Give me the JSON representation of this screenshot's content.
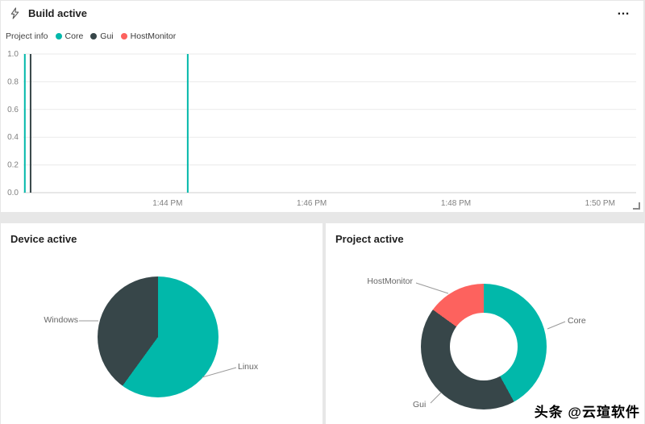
{
  "watermark": "头条 @云瑄软件",
  "colors": {
    "teal": "#01B8AA",
    "dark": "#374649",
    "red": "#FD625E"
  },
  "tiles": {
    "build": {
      "title": "Build active",
      "menu": "…",
      "legend_title": "Project info",
      "legend": [
        {
          "label": "Core",
          "color": "#01B8AA"
        },
        {
          "label": "Gui",
          "color": "#374649"
        },
        {
          "label": "HostMonitor",
          "color": "#FD625E"
        }
      ]
    },
    "device": {
      "title": "Device active"
    },
    "project": {
      "title": "Project active"
    }
  },
  "chart_data": [
    {
      "type": "line",
      "title": "Build active",
      "ylabel": "",
      "xlabel": "",
      "ylim": [
        0,
        1
      ],
      "y_ticks": [
        0.0,
        0.2,
        0.4,
        0.6,
        0.8,
        1.0
      ],
      "x_ticks": [
        "1:44 PM",
        "1:46 PM",
        "1:48 PM",
        "1:50 PM"
      ],
      "x_range_minutes": [
        0,
        8.5
      ],
      "tick_positions_minutes": [
        2,
        4,
        6,
        8
      ],
      "grid": true,
      "legend_position": "top-left",
      "series": [
        {
          "name": "Core",
          "color": "#01B8AA",
          "spikes_minutes": [
            0.02,
            2.28
          ]
        },
        {
          "name": "Gui",
          "color": "#374649",
          "spikes_minutes": [
            0.1
          ]
        },
        {
          "name": "HostMonitor",
          "color": "#FD625E",
          "spikes_minutes": []
        }
      ]
    },
    {
      "type": "pie",
      "title": "Device active",
      "slices": [
        {
          "label": "Linux",
          "value": 60,
          "color": "#01B8AA"
        },
        {
          "label": "Windows",
          "value": 40,
          "color": "#374649"
        }
      ]
    },
    {
      "type": "pie",
      "donut": true,
      "title": "Project active",
      "slices": [
        {
          "label": "Core",
          "value": 42,
          "color": "#01B8AA"
        },
        {
          "label": "Gui",
          "value": 43,
          "color": "#374649"
        },
        {
          "label": "HostMonitor",
          "value": 15,
          "color": "#FD625E"
        }
      ]
    }
  ]
}
